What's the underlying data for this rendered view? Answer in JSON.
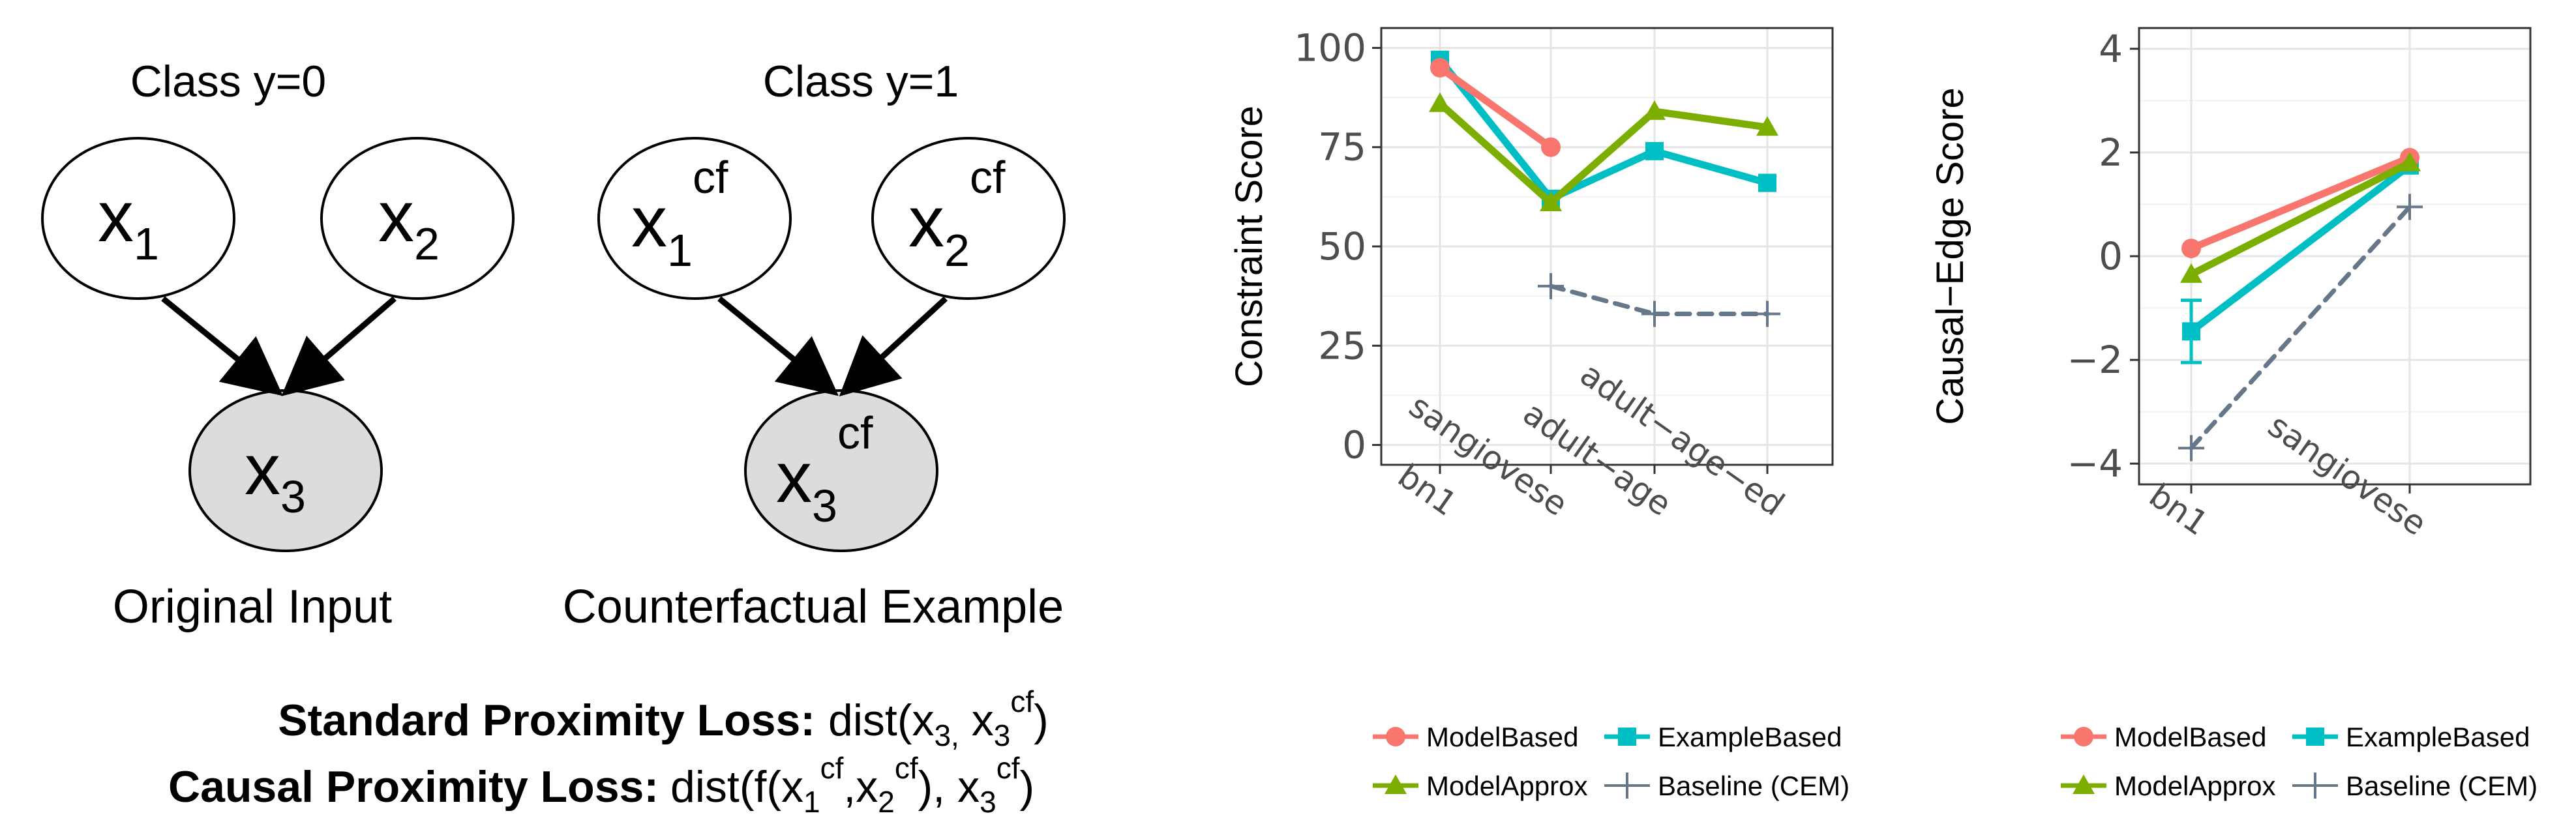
{
  "diagram": {
    "left": {
      "class_label": "Class y=0",
      "nodes": [
        {
          "id": "x1",
          "main": "x",
          "sub": "1",
          "sup": ""
        },
        {
          "id": "x2",
          "main": "x",
          "sub": "2",
          "sup": ""
        },
        {
          "id": "x3",
          "main": "x",
          "sub": "3",
          "sup": ""
        }
      ],
      "caption": "Original Input"
    },
    "right": {
      "class_label": "Class y=1",
      "nodes": [
        {
          "id": "x1cf",
          "main": "x",
          "sub": "1",
          "sup": "cf"
        },
        {
          "id": "x2cf",
          "main": "x",
          "sub": "2",
          "sup": "cf"
        },
        {
          "id": "x3cf",
          "main": "x",
          "sub": "3",
          "sup": "cf"
        }
      ],
      "caption": "Counterfactual Example"
    },
    "colors": {
      "node_fill_plain": "#ffffff",
      "node_fill_child": "#dcdcdc",
      "stroke": "#000000"
    }
  },
  "losses": {
    "standard": {
      "label": "Standard Proximity Loss:",
      "f_open": "dist(x",
      "s1": "3,",
      "mid": " x",
      "s2": "3",
      "p2": "cf",
      "close": ")"
    },
    "causal": {
      "label": "Causal Proximity Loss:",
      "f_open": "dist(f(x",
      "s1": "1",
      "p1": "cf",
      "t2": ",x",
      "s2": "2",
      "p2": "cf",
      "t3": "), x",
      "s3": "3",
      "p3": "cf",
      "close": ")"
    }
  },
  "chart_data": [
    {
      "type": "line",
      "ylabel": "Constraint Score",
      "xlabel": "",
      "categories": [
        "bn1",
        "sangiovese",
        "adult-age",
        "adult-age-ed"
      ],
      "ylim": [
        -5,
        105
      ],
      "yticks": [
        0,
        25,
        50,
        75,
        100
      ],
      "grid": true,
      "legend_position": "bottom",
      "series": [
        {
          "name": "ModelBased",
          "color": "#f8766d",
          "marker": "circle",
          "dashed": false,
          "values": [
            95,
            75,
            null,
            null
          ]
        },
        {
          "name": "ExampleBased",
          "color": "#00bfc4",
          "marker": "square",
          "dashed": false,
          "values": [
            97,
            62,
            74,
            66
          ]
        },
        {
          "name": "ModelApprox",
          "color": "#7cae00",
          "marker": "triangle",
          "dashed": false,
          "values": [
            86,
            61,
            84,
            80
          ]
        },
        {
          "name": "Baseline (CEM)",
          "color": "#66778a",
          "marker": "plus",
          "dashed": true,
          "values": [
            null,
            40,
            33,
            33
          ]
        }
      ]
    },
    {
      "type": "line",
      "ylabel": "Causal-Edge Score",
      "xlabel": "",
      "categories": [
        "bn1",
        "sangiovese"
      ],
      "ylim": [
        -4.4,
        4.4
      ],
      "yticks": [
        -4,
        -2,
        0,
        2,
        4
      ],
      "grid": true,
      "legend_position": "bottom",
      "series": [
        {
          "name": "ModelBased",
          "color": "#f8766d",
          "marker": "circle",
          "dashed": false,
          "values": [
            0.15,
            1.9
          ]
        },
        {
          "name": "ExampleBased",
          "color": "#00bfc4",
          "marker": "square",
          "dashed": false,
          "values": [
            -1.45,
            1.75
          ],
          "error_low": [
            -2.05,
            null
          ],
          "error_high": [
            -0.85,
            null
          ]
        },
        {
          "name": "ModelApprox",
          "color": "#7cae00",
          "marker": "triangle",
          "dashed": false,
          "values": [
            -0.35,
            1.8
          ]
        },
        {
          "name": "Baseline (CEM)",
          "color": "#66778a",
          "marker": "plus",
          "dashed": true,
          "values": [
            -3.7,
            0.95
          ]
        }
      ]
    }
  ]
}
